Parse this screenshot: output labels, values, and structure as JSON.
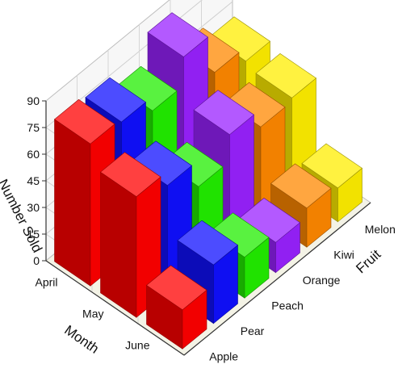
{
  "chart_data": {
    "type": "bar",
    "subtype": "3d-column",
    "title": "",
    "xlabel": "Fruit",
    "ylabel": "Month",
    "zlabel": "Number Sold",
    "zlim": [
      0,
      90
    ],
    "zticks": [
      0,
      15,
      30,
      45,
      60,
      75,
      90
    ],
    "fruits": [
      "Apple",
      "Pear",
      "Peach",
      "Orange",
      "Kiwi",
      "Melon"
    ],
    "months": [
      "April",
      "May",
      "June"
    ],
    "series": [
      {
        "fruit": "Apple",
        "color": "#ff0000",
        "values": {
          "April": 80,
          "May": 68,
          "June": 22
        }
      },
      {
        "fruit": "Pear",
        "color": "#1010ff",
        "values": {
          "April": 78,
          "May": 60,
          "June": 33
        }
      },
      {
        "fruit": "Peach",
        "color": "#22ee00",
        "values": {
          "April": 70,
          "May": 45,
          "June": 23
        }
      },
      {
        "fruit": "Orange",
        "color": "#9922ff",
        "values": {
          "April": 86,
          "May": 60,
          "June": 17
        }
      },
      {
        "fruit": "Kiwi",
        "color": "#ff8800",
        "values": {
          "April": 63,
          "May": 50,
          "June": 22
        }
      },
      {
        "fruit": "Melon",
        "color": "#ffee00",
        "values": {
          "April": 55,
          "May": 52,
          "June": 19
        }
      }
    ],
    "grid": true,
    "legend": "none"
  }
}
